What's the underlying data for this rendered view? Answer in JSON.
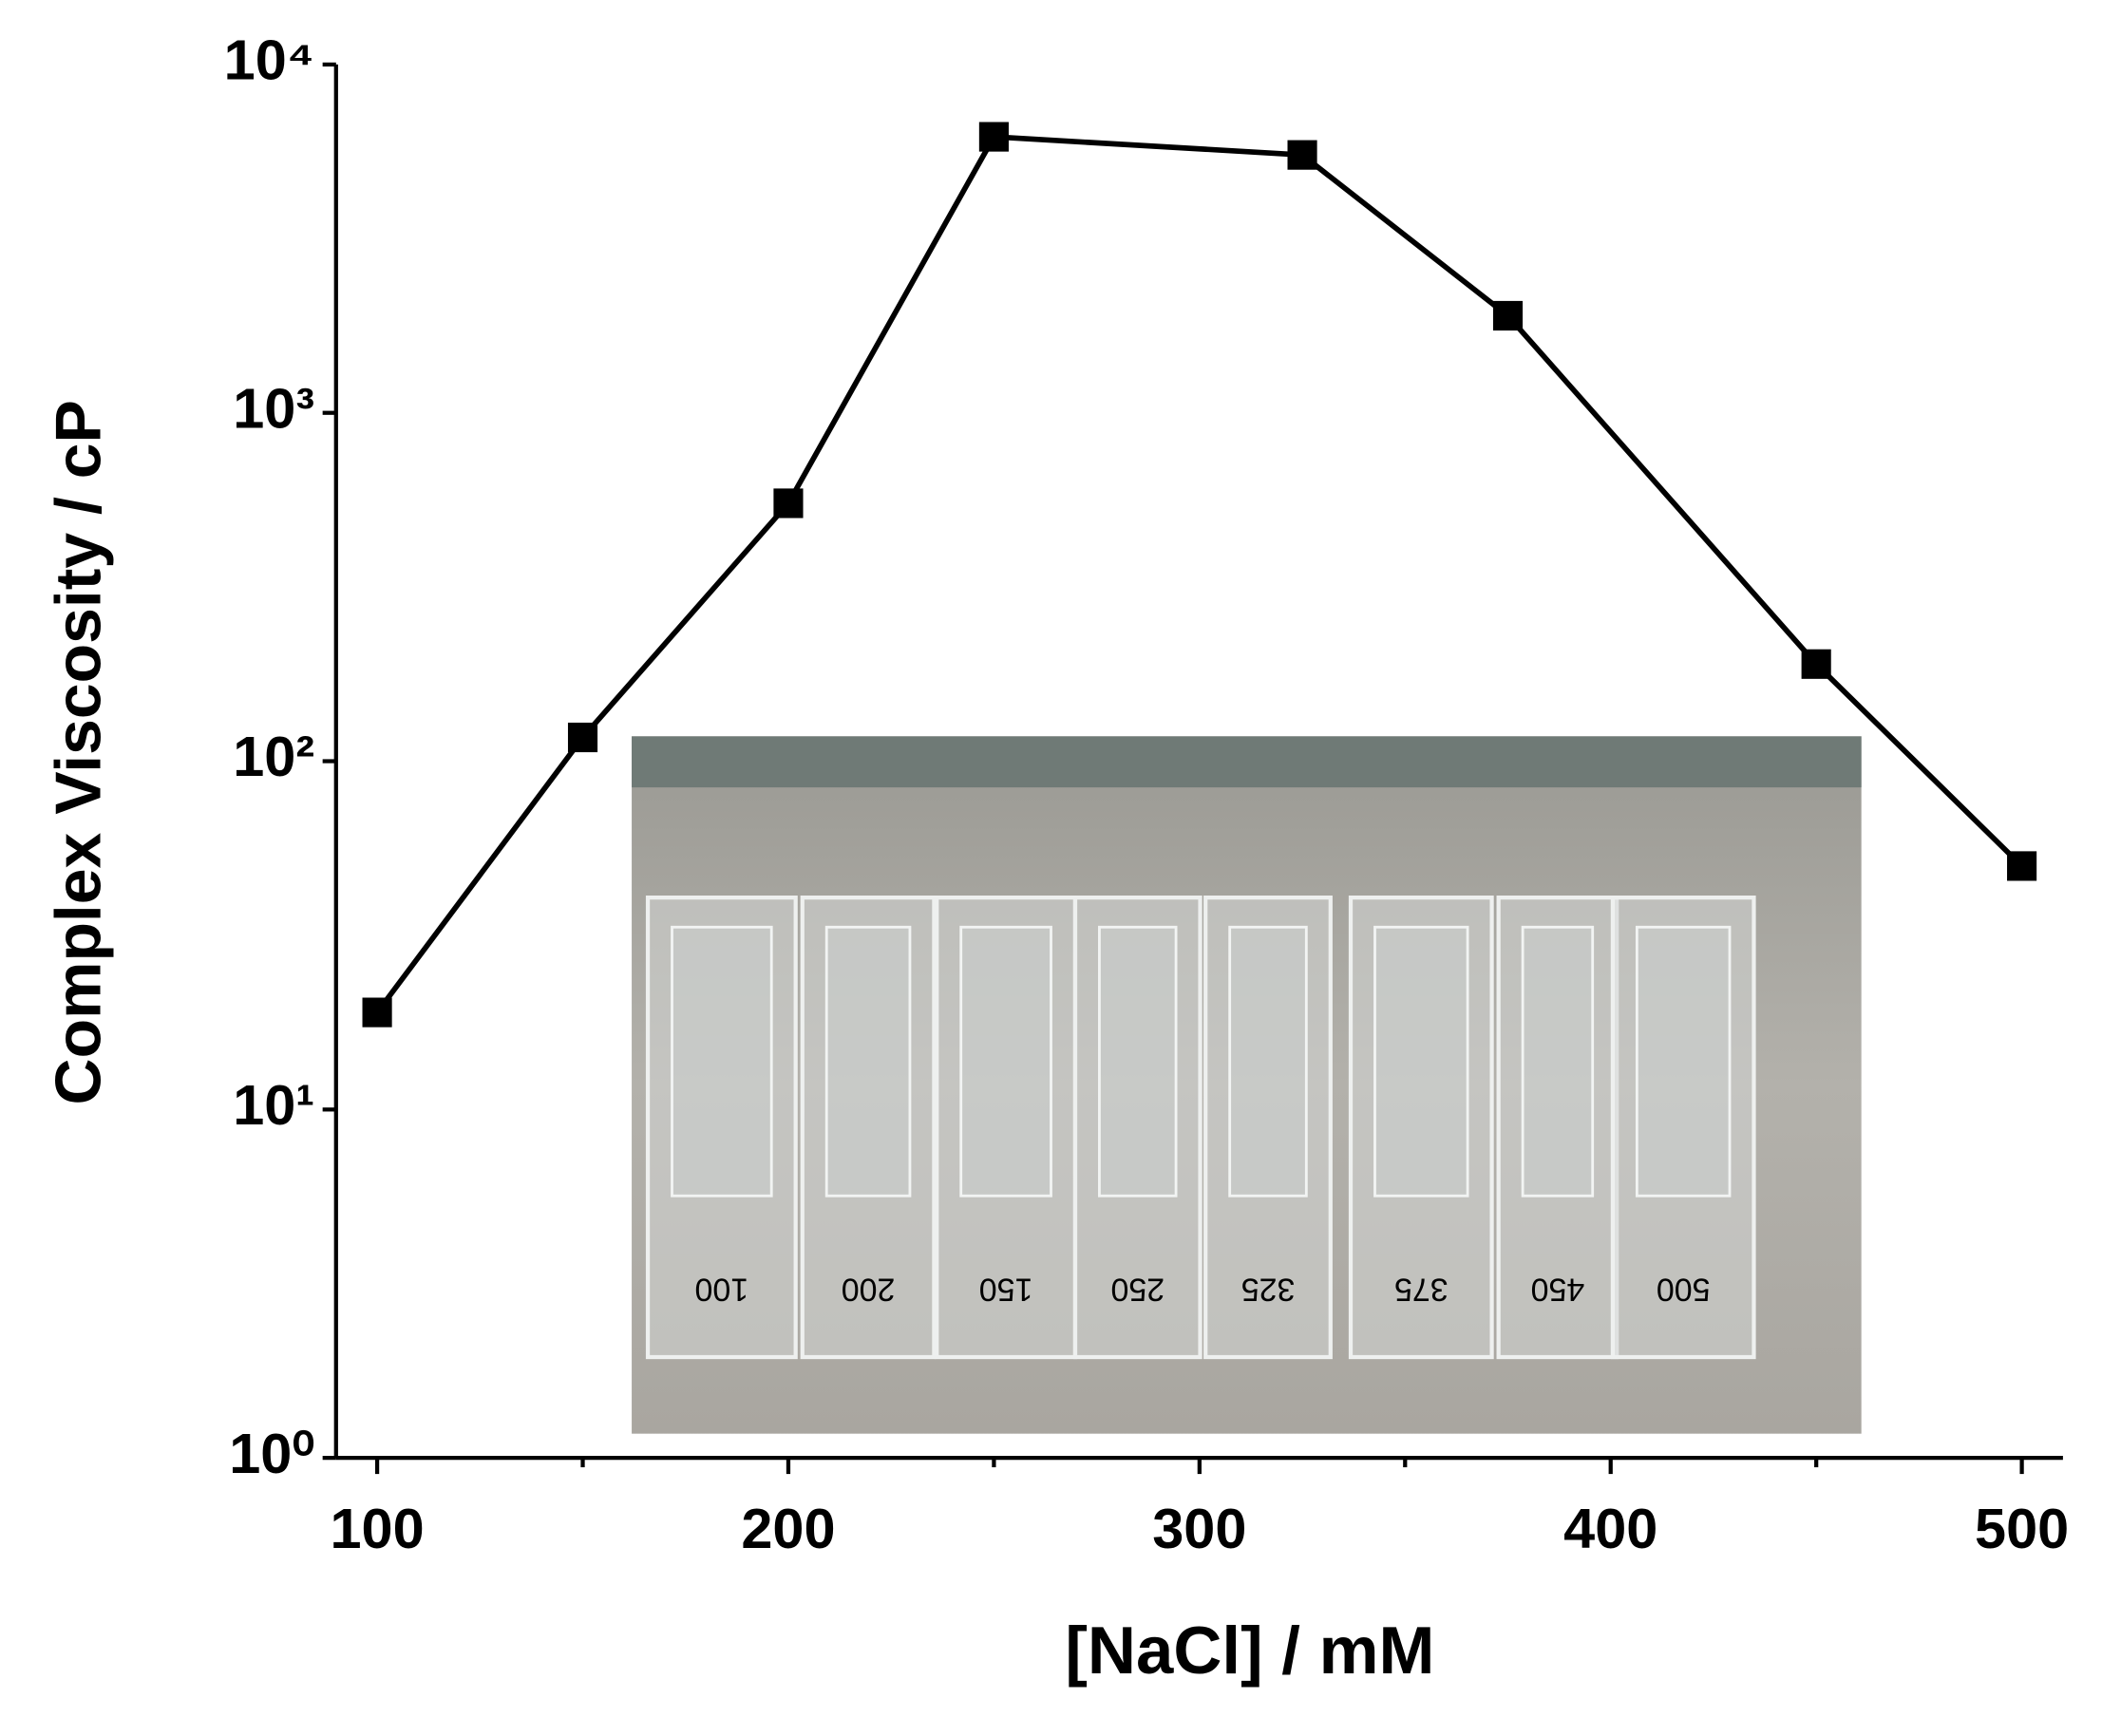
{
  "chart_data": {
    "type": "line",
    "xlabel": "[NaCl] / mM",
    "ylabel": "Complex Viscosity / cP",
    "x": [
      100,
      150,
      200,
      250,
      325,
      375,
      450,
      500
    ],
    "series": [
      {
        "color": "#000000",
        "values": [
          19,
          117,
          550,
          6200,
          5500,
          1900,
          190,
          50
        ]
      }
    ],
    "xlim": [
      90,
      510
    ],
    "xticks": [
      100,
      200,
      300,
      400,
      500
    ],
    "xminorticks": [
      150,
      250,
      350,
      450
    ],
    "ylim": [
      1,
      10000
    ],
    "yscale": "log",
    "yticks": [
      {
        "value": 1,
        "label": "10⁰"
      },
      {
        "value": 10,
        "label": "10¹"
      },
      {
        "value": 100,
        "label": "10²"
      },
      {
        "value": 1000,
        "label": "10³"
      },
      {
        "value": 10000,
        "label": "10⁴"
      }
    ],
    "grid": false
  },
  "inset": {
    "labels": [
      "100",
      "200",
      "150",
      "250",
      "325",
      "375",
      "450",
      "500"
    ]
  }
}
